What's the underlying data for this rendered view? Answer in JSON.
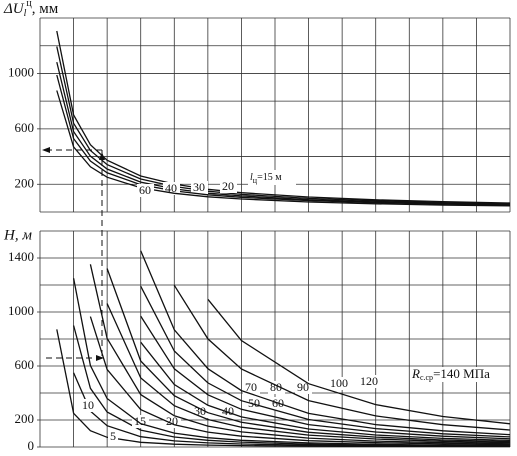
{
  "chart_data": [
    {
      "type": "line",
      "title": "ΔU",
      "title_sub": "l",
      "title_sup": "ц",
      "title_unit": ", мм",
      "xlim": [
        0,
        14
      ],
      "xgrid": [
        0,
        1,
        2,
        3,
        4,
        5,
        6,
        7,
        8,
        9,
        10,
        11,
        12,
        13,
        14
      ],
      "ylim": [
        0,
        1400
      ],
      "yticks": [
        200,
        600,
        1000
      ],
      "ygrid": [
        0,
        200,
        400,
        600,
        800,
        1000,
        1200,
        1400
      ],
      "grid": true,
      "x": [
        0.5,
        1,
        1.5,
        2,
        3,
        4,
        5,
        6,
        8,
        10,
        12,
        14
      ],
      "annotation": {
        "text": "l",
        "sub": "ц",
        "rest": "=15 м"
      },
      "series": [
        {
          "color": "#111",
          "values": [
            1306,
            700,
            486,
            374,
            260,
            201,
            164,
            139,
            108,
            88,
            75,
            65
          ]
        },
        {
          "name": "20",
          "color": "#111",
          "values": [
            1194,
            640,
            444,
            342,
            238,
            184,
            150,
            127,
            98,
            81,
            68,
            60
          ]
        },
        {
          "name": "30",
          "color": "#111",
          "values": [
            1082,
            580,
            403,
            310,
            216,
            167,
            136,
            116,
            89,
            73,
            62,
            54
          ]
        },
        {
          "name": "40",
          "color": "#111",
          "values": [
            989,
            530,
            368,
            283,
            197,
            152,
            124,
            106,
            82,
            67,
            57,
            49
          ]
        },
        {
          "name": "60",
          "color": "#111",
          "values": [
            877,
            470,
            326,
            251,
            175,
            135,
            110,
            94,
            72,
            59,
            50,
            44
          ]
        }
      ]
    },
    {
      "type": "line",
      "title": "H, м",
      "xlim": [
        0,
        14
      ],
      "xgrid": [
        0,
        1,
        2,
        3,
        4,
        5,
        6,
        7,
        8,
        9,
        10,
        11,
        12,
        13,
        14
      ],
      "ylim": [
        0,
        1600
      ],
      "yticks": [
        0,
        200,
        600,
        1000,
        1400
      ],
      "ygrid": [
        0,
        200,
        400,
        600,
        800,
        1000,
        1200,
        1400,
        1600
      ],
      "grid": true,
      "x": [
        0.5,
        1,
        1.5,
        2,
        3,
        4,
        5,
        6,
        8,
        10,
        12,
        14
      ],
      "annotation": {
        "text": "R",
        "sub": "с.ср",
        "rest": "=140 МПа"
      },
      "series": [
        {
          "name": "5",
          "color": "#111",
          "values": [
            871,
            250,
            121,
            72,
            35,
            21,
            14,
            10,
            6,
            4,
            3,
            2
          ]
        },
        {
          "name": "10",
          "color": "#111",
          "values": [
            null,
            550,
            266,
            158,
            76,
            45,
            30,
            22,
            13,
            9,
            6,
            5
          ]
        },
        {
          "name": "15",
          "color": "#111",
          "values": [
            null,
            900,
            435,
            259,
            125,
            74,
            50,
            36,
            21,
            14,
            10,
            8
          ]
        },
        {
          "name": "20",
          "color": "#111",
          "values": [
            null,
            1250,
            604,
            359,
            173,
            103,
            69,
            50,
            30,
            20,
            14,
            11
          ]
        },
        {
          "name": "30",
          "color": "#111",
          "values": [
            null,
            null,
            966,
            575,
            277,
            165,
            110,
            80,
            47,
            32,
            23,
            17
          ]
        },
        {
          "name": "40",
          "color": "#111",
          "values": [
            null,
            null,
            1353,
            805,
            388,
            231,
            155,
            112,
            66,
            44,
            32,
            24
          ]
        },
        {
          "name": "50",
          "color": "#111",
          "values": [
            null,
            null,
            null,
            1063,
            512,
            306,
            204,
            147,
            88,
            59,
            42,
            32
          ]
        },
        {
          "name": "60",
          "color": "#111",
          "values": [
            null,
            null,
            null,
            1322,
            637,
            380,
            254,
            183,
            109,
            73,
            52,
            40
          ]
        },
        {
          "name": "70",
          "color": "#111",
          "values": [
            null,
            null,
            null,
            null,
            776,
            463,
            309,
            223,
            133,
            89,
            64,
            49
          ]
        },
        {
          "name": "80",
          "color": "#111",
          "values": [
            null,
            null,
            null,
            null,
            970,
            579,
            387,
            279,
            166,
            111,
            80,
            61
          ]
        },
        {
          "name": "90",
          "color": "#111",
          "values": [
            null,
            null,
            null,
            null,
            1191,
            711,
            475,
            343,
            204,
            136,
            98,
            75
          ]
        },
        {
          "name": "100",
          "color": "#111",
          "values": [
            null,
            null,
            null,
            null,
            1454,
            868,
            580,
            418,
            249,
            166,
            120,
            91
          ]
        },
        {
          "name": "120",
          "color": "#111",
          "values": [
            null,
            null,
            null,
            null,
            null,
            1198,
            801,
            578,
            344,
            230,
            165,
            126
          ]
        },
        {
          "color": "#111",
          "values": [
            null,
            null,
            null,
            null,
            null,
            null,
            1094,
            789,
            469,
            314,
            226,
            172
          ]
        }
      ]
    }
  ]
}
